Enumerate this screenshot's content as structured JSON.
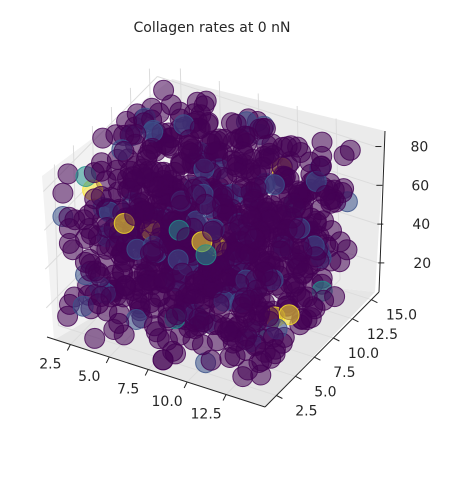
{
  "chart_data": {
    "type": "scatter",
    "projection": "3d",
    "title": "Collagen rates at 0 nN",
    "xlabel": "",
    "ylabel": "",
    "zlabel": "",
    "grid": true,
    "x_ticks": [
      "2.5",
      "5.0",
      "7.5",
      "10.0",
      "12.5"
    ],
    "y_ticks": [
      "2.5",
      "5.0",
      "7.5",
      "10.0",
      "12.5",
      "15.0"
    ],
    "z_ticks": [
      "20",
      "40",
      "60",
      "80"
    ],
    "xlim": [
      1,
      15
    ],
    "ylim": [
      1,
      16
    ],
    "zlim": [
      5,
      88
    ],
    "colormap": "viridis",
    "colors": {
      "dominant": "#440154",
      "secondary": "#3b528b",
      "highlight_teal": "#21918c",
      "highlight_yellow": "#fde725",
      "pane": "#f2f2f2",
      "grid": "#dcdcdc",
      "axis": "#262626"
    },
    "distribution": {
      "description": "dense cloud of points filling the cube, almost all at the low end of the colormap",
      "x_range": [
        1.5,
        14
      ],
      "y_range": [
        1.5,
        15.5
      ],
      "z_range": [
        5,
        85
      ],
      "color_value_range": [
        0,
        1
      ]
    }
  }
}
